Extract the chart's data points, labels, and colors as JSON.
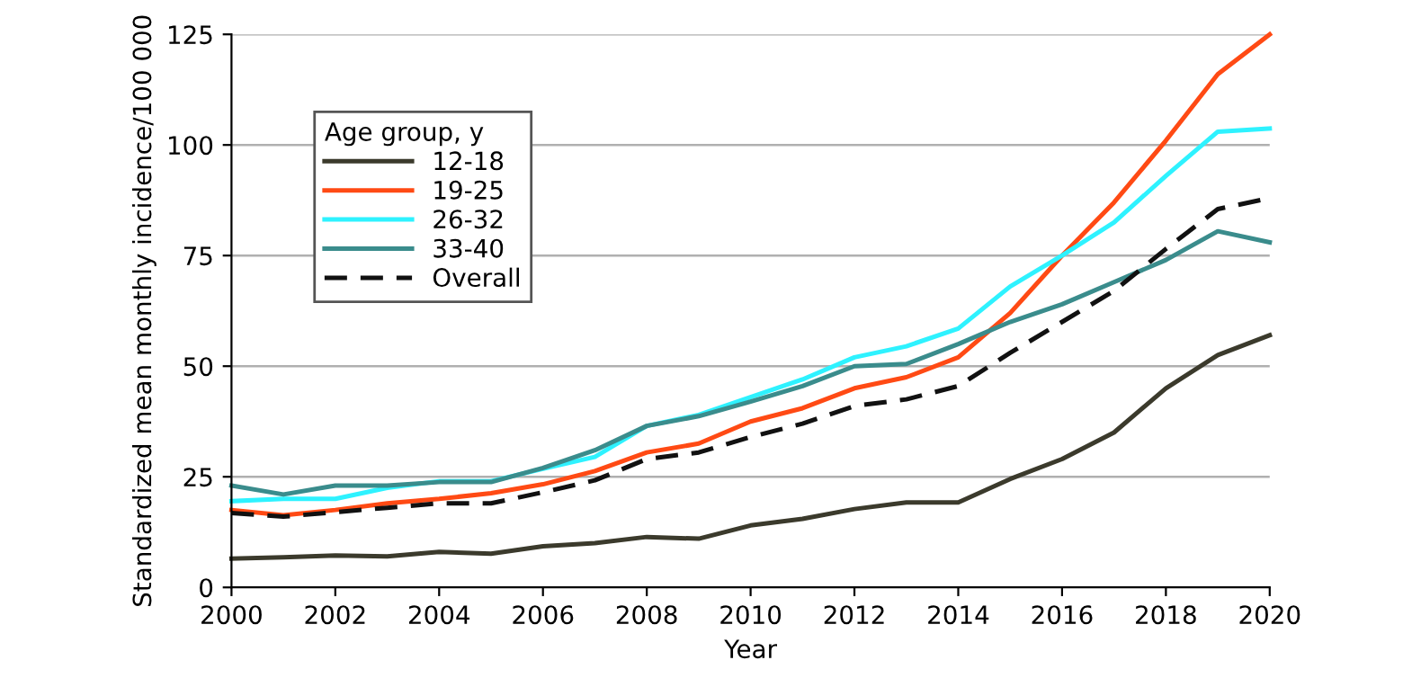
{
  "chart_data": {
    "type": "line",
    "xlabel": "Year",
    "ylabel": "Standardized mean monthly incidence/100 000",
    "legend_title": "Age group, y",
    "legend": "top left",
    "grid": "y",
    "marker": "none",
    "x": [
      2000,
      2001,
      2002,
      2003,
      2004,
      2005,
      2006,
      2007,
      2008,
      2009,
      2010,
      2011,
      2012,
      2013,
      2014,
      2015,
      2016,
      2017,
      2018,
      2019,
      2020
    ],
    "xlim": [
      2000,
      2020
    ],
    "xticks": [
      2000,
      2002,
      2004,
      2006,
      2008,
      2010,
      2012,
      2014,
      2016,
      2018,
      2020
    ],
    "ylim": [
      0,
      125
    ],
    "yticks": [
      0,
      25,
      50,
      75,
      100,
      125
    ],
    "series": [
      {
        "name": "12-18",
        "color": "#3b3a2c",
        "line_style": "solid",
        "values": [
          6.5,
          6.8,
          7.2,
          7,
          8,
          7.6,
          9.3,
          10,
          11.4,
          11,
          14,
          15.5,
          17.7,
          19.2,
          19.2,
          24.5,
          29,
          35,
          45,
          52.5,
          57
        ]
      },
      {
        "name": "19-25",
        "color": "#ff4a14",
        "line_style": "solid",
        "values": [
          17.5,
          16.3,
          17.5,
          19,
          20,
          21.3,
          23.3,
          26.3,
          30.5,
          32.5,
          37.5,
          40.5,
          45,
          47.5,
          52,
          62,
          75,
          87,
          101,
          116,
          125
        ]
      },
      {
        "name": "26-32",
        "color": "#2ef2ff",
        "line_style": "solid",
        "values": [
          19.5,
          20,
          20,
          22.5,
          24,
          24,
          26.8,
          29.5,
          36.5,
          39,
          43,
          47,
          52,
          54.5,
          58.5,
          68,
          75,
          82.5,
          93,
          103,
          103.7
        ]
      },
      {
        "name": "33-40",
        "color": "#3a8c8c",
        "line_style": "solid",
        "values": [
          23,
          21,
          23,
          23,
          23.8,
          23.8,
          27,
          31,
          36.5,
          38.7,
          42,
          45.5,
          50,
          50.5,
          55,
          60,
          64,
          69,
          74,
          80.5,
          78
        ]
      },
      {
        "name": "Overall",
        "color": "#111111",
        "line_style": "dashed",
        "values": [
          16.8,
          16,
          17,
          18,
          19,
          19,
          21.5,
          24.2,
          29,
          30.5,
          34,
          37,
          41,
          42.5,
          45.5,
          53,
          60,
          67,
          76.5,
          85.5,
          88
        ]
      }
    ]
  }
}
